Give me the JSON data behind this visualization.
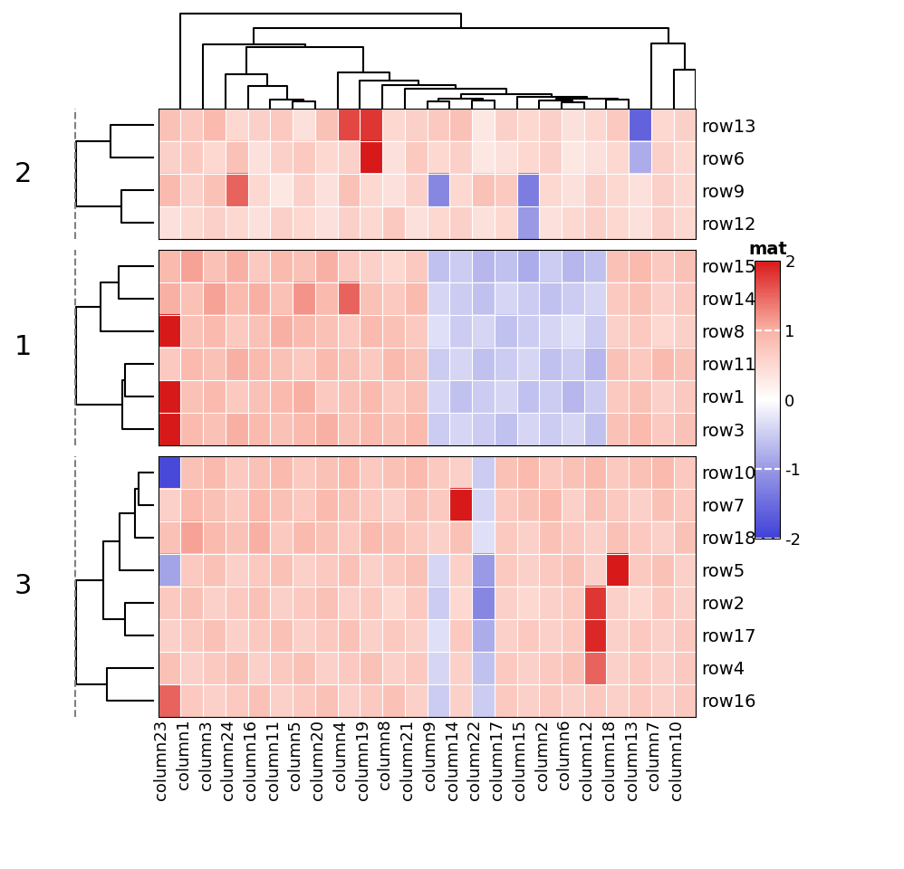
{
  "actual_row_order": [
    "row13",
    "row6",
    "row9",
    "row12",
    "row15",
    "row14",
    "row8",
    "row11",
    "row1",
    "row3",
    "row10",
    "row7",
    "row18",
    "row5",
    "row2",
    "row17",
    "row4",
    "row16"
  ],
  "actual_col_order": [
    "column23",
    "column1",
    "column3",
    "column24",
    "column16",
    "column11",
    "column5",
    "column20",
    "column4",
    "column19",
    "column8",
    "column21",
    "column9",
    "column14",
    "column22",
    "column17",
    "column15",
    "column2",
    "column6",
    "column12",
    "column18",
    "column13",
    "column7",
    "column10"
  ],
  "cluster_row_sizes": [
    4,
    6,
    8
  ],
  "cluster_names": [
    "2",
    "1",
    "3"
  ],
  "colormap_name": "RdBu_r",
  "vmin": -2,
  "vmax": 2,
  "legend_title": "mat",
  "legend_ticks": [
    2,
    1,
    0,
    -1,
    -2
  ],
  "background_color": "#ffffff",
  "label_fontsize": 14,
  "cluster_label_fontsize": 22,
  "heatmap_data": [
    [
      0.8,
      0.7,
      0.9,
      0.5,
      0.6,
      0.7,
      0.4,
      0.8,
      1.7,
      1.8,
      0.5,
      0.6,
      0.7,
      0.8,
      0.3,
      0.6,
      0.5,
      0.6,
      0.4,
      0.5,
      0.7,
      -1.6,
      0.5,
      0.6
    ],
    [
      0.6,
      0.7,
      0.5,
      0.8,
      0.4,
      0.6,
      0.7,
      0.5,
      0.6,
      2.1,
      0.4,
      0.7,
      0.5,
      0.6,
      0.3,
      0.4,
      0.5,
      0.6,
      0.3,
      0.4,
      0.5,
      -0.8,
      0.6,
      0.5
    ],
    [
      0.9,
      0.6,
      0.8,
      1.5,
      0.5,
      0.3,
      0.6,
      0.4,
      0.8,
      0.5,
      0.4,
      0.6,
      -1.2,
      0.5,
      0.8,
      0.7,
      -1.3,
      0.5,
      0.4,
      0.6,
      0.5,
      0.4,
      0.6,
      0.5
    ],
    [
      0.4,
      0.5,
      0.6,
      0.5,
      0.4,
      0.6,
      0.5,
      0.4,
      0.6,
      0.5,
      0.7,
      0.4,
      0.5,
      0.6,
      0.4,
      0.5,
      -1.0,
      0.4,
      0.5,
      0.6,
      0.5,
      0.4,
      0.6,
      0.5
    ],
    [
      0.9,
      1.1,
      0.8,
      1.0,
      0.7,
      0.9,
      0.8,
      1.0,
      0.7,
      0.6,
      0.5,
      0.7,
      -0.6,
      -0.5,
      -0.7,
      -0.6,
      -0.8,
      -0.5,
      -0.7,
      -0.6,
      0.8,
      0.9,
      0.7,
      0.8
    ],
    [
      1.0,
      0.8,
      1.1,
      0.9,
      1.0,
      0.8,
      1.2,
      0.9,
      1.5,
      0.8,
      0.7,
      0.9,
      -0.4,
      -0.5,
      -0.6,
      -0.4,
      -0.5,
      -0.6,
      -0.5,
      -0.4,
      0.7,
      0.8,
      0.6,
      0.7
    ],
    [
      2.3,
      0.8,
      0.9,
      0.7,
      0.8,
      1.0,
      0.9,
      0.8,
      0.7,
      0.9,
      0.8,
      0.7,
      -0.3,
      -0.5,
      -0.4,
      -0.6,
      -0.5,
      -0.4,
      -0.3,
      -0.5,
      0.6,
      0.7,
      0.5,
      0.6
    ],
    [
      0.7,
      0.9,
      0.8,
      1.0,
      0.9,
      0.8,
      0.7,
      0.9,
      0.8,
      0.7,
      0.9,
      0.8,
      -0.5,
      -0.4,
      -0.6,
      -0.5,
      -0.4,
      -0.6,
      -0.5,
      -0.7,
      0.8,
      0.7,
      0.9,
      0.8
    ],
    [
      2.0,
      0.8,
      0.9,
      0.7,
      0.8,
      0.9,
      1.0,
      0.7,
      0.8,
      0.9,
      0.7,
      0.8,
      -0.4,
      -0.6,
      -0.5,
      -0.4,
      -0.6,
      -0.5,
      -0.7,
      -0.5,
      0.7,
      0.8,
      0.6,
      0.7
    ],
    [
      2.1,
      0.9,
      0.8,
      1.0,
      0.9,
      0.8,
      0.9,
      1.0,
      0.8,
      0.9,
      0.8,
      0.9,
      -0.5,
      -0.4,
      -0.5,
      -0.6,
      -0.4,
      -0.5,
      -0.4,
      -0.6,
      0.8,
      0.9,
      0.7,
      0.8
    ],
    [
      -1.9,
      0.8,
      0.9,
      0.7,
      0.8,
      0.9,
      0.7,
      0.8,
      0.9,
      0.7,
      0.8,
      0.9,
      0.7,
      0.6,
      -0.5,
      0.8,
      0.9,
      0.7,
      0.8,
      0.9,
      0.7,
      0.8,
      0.9,
      0.7
    ],
    [
      0.6,
      0.9,
      0.8,
      0.7,
      0.9,
      0.8,
      0.7,
      0.9,
      0.8,
      0.7,
      0.6,
      0.8,
      0.7,
      2.0,
      -0.4,
      0.7,
      0.8,
      0.9,
      0.6,
      0.8,
      0.7,
      0.6,
      0.8,
      0.7
    ],
    [
      0.8,
      1.1,
      0.9,
      0.8,
      1.0,
      0.7,
      0.9,
      0.8,
      0.7,
      0.9,
      0.8,
      0.7,
      0.6,
      0.8,
      -0.3,
      0.7,
      0.6,
      0.8,
      0.7,
      0.6,
      0.8,
      0.7,
      0.6,
      0.8
    ],
    [
      -0.9,
      0.7,
      0.8,
      0.6,
      0.7,
      0.8,
      0.6,
      0.7,
      0.8,
      0.6,
      0.7,
      0.8,
      -0.4,
      0.6,
      -1.0,
      0.7,
      0.6,
      0.7,
      0.8,
      0.6,
      2.2,
      0.7,
      0.8,
      0.6
    ],
    [
      0.7,
      0.8,
      0.6,
      0.7,
      0.8,
      0.6,
      0.7,
      0.8,
      0.6,
      0.7,
      0.5,
      0.7,
      -0.5,
      0.5,
      -1.2,
      0.6,
      0.5,
      0.6,
      0.7,
      1.8,
      0.6,
      0.5,
      0.7,
      0.6
    ],
    [
      0.6,
      0.7,
      0.8,
      0.6,
      0.7,
      0.8,
      0.6,
      0.7,
      0.8,
      0.6,
      0.7,
      0.6,
      -0.3,
      0.7,
      -0.8,
      0.6,
      0.7,
      0.6,
      0.7,
      1.9,
      0.6,
      0.7,
      0.6,
      0.7
    ],
    [
      0.8,
      0.6,
      0.7,
      0.8,
      0.6,
      0.7,
      0.8,
      0.6,
      0.7,
      0.8,
      0.6,
      0.7,
      -0.4,
      0.6,
      -0.6,
      0.7,
      0.6,
      0.7,
      0.8,
      1.5,
      0.6,
      0.7,
      0.6,
      0.7
    ],
    [
      1.5,
      0.7,
      0.6,
      0.7,
      0.8,
      0.6,
      0.7,
      0.8,
      0.6,
      0.7,
      0.8,
      0.6,
      -0.5,
      0.6,
      -0.5,
      0.7,
      0.6,
      0.7,
      0.6,
      0.7,
      0.6,
      0.7,
      0.6,
      0.7
    ]
  ]
}
